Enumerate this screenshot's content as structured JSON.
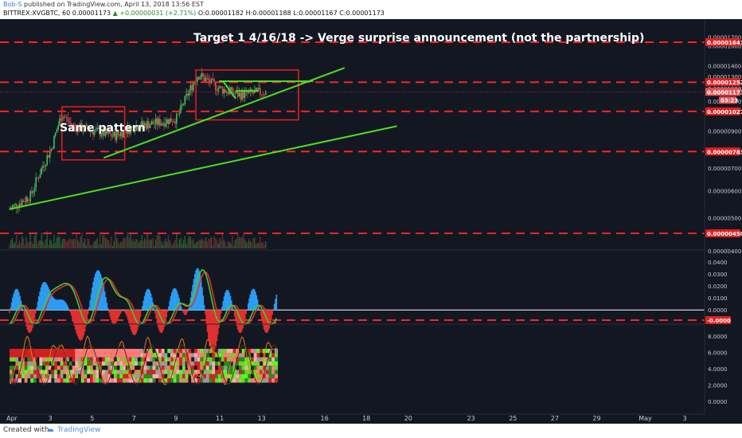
{
  "header": {
    "author": "Bob-S",
    "published_text": "published on TradingView.com, April 13, 2018 13:56 EST",
    "symbol_text": "BITTREX:XVGBTC, 60",
    "open": "0.00001173",
    "change_up": "▲ +0.00000031 (+2.71%)",
    "ohlc": "O:0.00001182  H:0.00001188  L:0.00001167  C:0.00001173"
  },
  "annotations": {
    "target": "Target 1 4/16/18 -> Verge surprise announcement (not the partnership)",
    "pattern": "Same pattern"
  },
  "footer": {
    "created_with": "Created with",
    "brand": "TradingView"
  },
  "colors": {
    "background": "#131722",
    "level_line": "#ff2222",
    "trendline": "#4cdd22",
    "box": "#dd1f1f",
    "price_label_bg": "#e02020",
    "axis_text": "#c8ccd0"
  },
  "chart_data": [
    {
      "type": "candlestick",
      "pair": "XVG/BTC",
      "interval": "60",
      "x_ticks": [
        "Apr",
        "3",
        "5",
        "7",
        "9",
        "11",
        "13",
        "16",
        "18",
        "20",
        "23",
        "25",
        "27",
        "29",
        "May",
        "3"
      ],
      "y_ticks": [
        "0.00001700",
        "0.00001600",
        "0.00001400",
        "0.00001300",
        "0.00001200",
        "0.00001100",
        "0.00000900",
        "0.00000700",
        "0.00000600",
        "0.00000500",
        "0.00000400"
      ],
      "ylim": [
        3.8e-06,
        1.76e-05
      ],
      "horizontal_levels": [
        1.641e-05,
        1.252e-05,
        1.027e-05,
        7.83e-06,
        4.5e-06
      ],
      "price_labels": [
        {
          "label": "0.00001641",
          "value": 1.641e-05
        },
        {
          "label": "0.00001252",
          "value": 1.252e-05
        },
        {
          "label": "0.00001173",
          "value": 1.173e-05
        },
        {
          "label": "0.00001027",
          "value": 1.027e-05
        },
        {
          "label": "0.00000783",
          "value": 7.83e-06
        },
        {
          "label": "0.00000450",
          "value": 4.5e-06
        }
      ],
      "countdown": "03:23",
      "last_price": 1.173e-05,
      "approx_closes": [
        {
          "x": "Apr 1",
          "y": 5.3e-06
        },
        {
          "x": "Apr 2",
          "y": 5.8e-06
        },
        {
          "x": "Apr 3",
          "y": 8e-06
        },
        {
          "x": "Apr 3.5",
          "y": 1.01e-05
        },
        {
          "x": "Apr 4",
          "y": 9.3e-06
        },
        {
          "x": "Apr 5",
          "y": 9e-06
        },
        {
          "x": "Apr 6",
          "y": 8.7e-06
        },
        {
          "x": "Apr 7",
          "y": 9.3e-06
        },
        {
          "x": "Apr 8",
          "y": 9.5e-06
        },
        {
          "x": "Apr 9",
          "y": 9.8e-06
        },
        {
          "x": "Apr 10",
          "y": 1.32e-05
        },
        {
          "x": "Apr 11",
          "y": 1.2e-05
        },
        {
          "x": "Apr 12",
          "y": 1.15e-05
        },
        {
          "x": "Apr 13",
          "y": 1.17e-05
        }
      ],
      "trendlines": [
        {
          "from": {
            "x": "Apr 1",
            "y": 5.3e-06
          },
          "to": {
            "x": "Apr 19.5",
            "y": 9.3e-06
          }
        },
        {
          "from": {
            "x": "Apr 5.5",
            "y": 7.5e-06
          },
          "to": {
            "x": "Apr 17",
            "y": 1.38e-05
          }
        },
        {
          "from": {
            "x": "Apr 11",
            "y": 1.26e-05
          },
          "to": {
            "x": "Apr 15.5",
            "y": 1.26e-05
          }
        }
      ]
    },
    {
      "type": "line",
      "panel": "oscillator",
      "y_ticks": [
        "0.0400",
        "0.0300",
        "0.0200",
        "0.0100",
        "0.0000",
        "-0.0000"
      ],
      "levels": [
        0.0,
        -0.0085
      ]
    },
    {
      "type": "heatmap",
      "panel": "indicator",
      "y_ticks": [
        "8.0000",
        "6.0000",
        "4.0000",
        "2.0000",
        "0.0000"
      ]
    }
  ]
}
